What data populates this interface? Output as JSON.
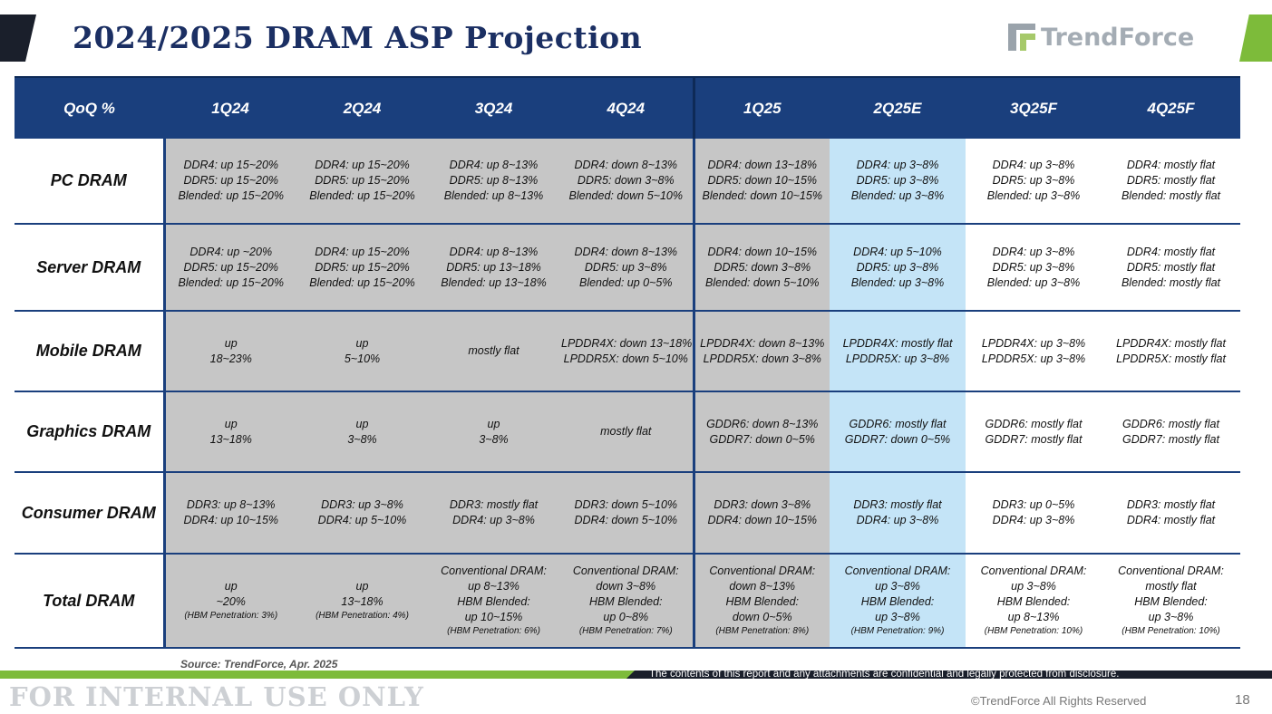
{
  "slide": {
    "title": "2024/2025 DRAM ASP Projection",
    "logo_text": "TrendForce",
    "source": "Source: TrendForce, Apr. 2025",
    "confidential_notice": "The contents of this report and any attachments are confidential and legally protected from disclosure.",
    "internal_label": "FOR INTERNAL USE ONLY",
    "copyright": "©TrendForce All Rights Reserved",
    "page_number": "18"
  },
  "table": {
    "header": [
      "QoQ %",
      "1Q24",
      "2Q24",
      "3Q24",
      "4Q24",
      "1Q25",
      "2Q25E",
      "3Q25F",
      "4Q25F"
    ],
    "rows": [
      {
        "label": "PC DRAM",
        "cells": [
          {
            "lines": [
              "DDR4: up 15~20%",
              "DDR5: up 15~20%",
              "Blended: up 15~20%"
            ]
          },
          {
            "lines": [
              "DDR4: up 15~20%",
              "DDR5: up 15~20%",
              "Blended: up 15~20%"
            ]
          },
          {
            "lines": [
              "DDR4: up 8~13%",
              "DDR5: up 8~13%",
              "Blended: up 8~13%"
            ]
          },
          {
            "lines": [
              "DDR4: down 8~13%",
              "DDR5: down 3~8%",
              "Blended: down 5~10%"
            ]
          },
          {
            "lines": [
              "DDR4: down 13~18%",
              "DDR5: down 10~15%",
              "Blended: down 10~15%"
            ]
          },
          {
            "lines": [
              "DDR4: up 3~8%",
              "DDR5: up 3~8%",
              "Blended: up 3~8%"
            ]
          },
          {
            "lines": [
              "DDR4: up 3~8%",
              "DDR5: up 3~8%",
              "Blended: up 3~8%"
            ]
          },
          {
            "lines": [
              "DDR4: mostly flat",
              "DDR5: mostly flat",
              "Blended: mostly flat"
            ]
          }
        ]
      },
      {
        "label": "Server DRAM",
        "cells": [
          {
            "lines": [
              "DDR4: up ~20%",
              "DDR5: up 15~20%",
              "Blended: up 15~20%"
            ]
          },
          {
            "lines": [
              "DDR4: up 15~20%",
              "DDR5: up 15~20%",
              "Blended: up 15~20%"
            ]
          },
          {
            "lines": [
              "DDR4: up 8~13%",
              "DDR5: up 13~18%",
              "Blended: up 13~18%"
            ]
          },
          {
            "lines": [
              "DDR4: down 8~13%",
              "DDR5: up 3~8%",
              "Blended: up 0~5%"
            ]
          },
          {
            "lines": [
              "DDR4: down 10~15%",
              "DDR5: down 3~8%",
              "Blended: down 5~10%"
            ]
          },
          {
            "lines": [
              "DDR4: up 5~10%",
              "DDR5: up 3~8%",
              "Blended: up 3~8%"
            ]
          },
          {
            "lines": [
              "DDR4: up 3~8%",
              "DDR5: up 3~8%",
              "Blended: up 3~8%"
            ]
          },
          {
            "lines": [
              "DDR4: mostly flat",
              "DDR5: mostly flat",
              "Blended: mostly flat"
            ]
          }
        ]
      },
      {
        "label": "Mobile DRAM",
        "cells": [
          {
            "lines": [
              "up",
              "18~23%"
            ]
          },
          {
            "lines": [
              "up",
              "5~10%"
            ]
          },
          {
            "lines": [
              "mostly flat"
            ]
          },
          {
            "lines": [
              "LPDDR4X: down 13~18%",
              "LPDDR5X: down 5~10%"
            ]
          },
          {
            "lines": [
              "LPDDR4X: down 8~13%",
              "LPDDR5X: down 3~8%"
            ]
          },
          {
            "lines": [
              "LPDDR4X: mostly flat",
              "LPDDR5X: up 3~8%"
            ]
          },
          {
            "lines": [
              "LPDDR4X: up 3~8%",
              "LPDDR5X: up 3~8%"
            ]
          },
          {
            "lines": [
              "LPDDR4X: mostly flat",
              "LPDDR5X: mostly flat"
            ]
          }
        ]
      },
      {
        "label": "Graphics DRAM",
        "cells": [
          {
            "lines": [
              "up",
              "13~18%"
            ]
          },
          {
            "lines": [
              "up",
              "3~8%"
            ]
          },
          {
            "lines": [
              "up",
              "3~8%"
            ]
          },
          {
            "lines": [
              "mostly flat"
            ]
          },
          {
            "lines": [
              "GDDR6: down 8~13%",
              "GDDR7: down 0~5%"
            ]
          },
          {
            "lines": [
              "GDDR6: mostly flat",
              "GDDR7: down 0~5%"
            ]
          },
          {
            "lines": [
              "GDDR6: mostly flat",
              "GDDR7: mostly flat"
            ]
          },
          {
            "lines": [
              "GDDR6: mostly flat",
              "GDDR7: mostly flat"
            ]
          }
        ]
      },
      {
        "label": "Consumer DRAM",
        "cells": [
          {
            "lines": [
              "DDR3: up 8~13%",
              "DDR4: up 10~15%"
            ]
          },
          {
            "lines": [
              "DDR3: up 3~8%",
              "DDR4: up 5~10%"
            ]
          },
          {
            "lines": [
              "DDR3: mostly flat",
              "DDR4: up 3~8%"
            ]
          },
          {
            "lines": [
              "DDR3: down 5~10%",
              "DDR4: down 5~10%"
            ]
          },
          {
            "lines": [
              "DDR3: down 3~8%",
              "DDR4: down 10~15%"
            ]
          },
          {
            "lines": [
              "DDR3: mostly flat",
              "DDR4: up 3~8%"
            ]
          },
          {
            "lines": [
              "DDR3: up 0~5%",
              "DDR4: up 3~8%"
            ]
          },
          {
            "lines": [
              "DDR3: mostly flat",
              "DDR4: mostly flat"
            ]
          }
        ]
      },
      {
        "label": "Total DRAM",
        "cells": [
          {
            "lines": [
              "up",
              "~20%"
            ],
            "note": "(HBM Penetration: 3%)"
          },
          {
            "lines": [
              "up",
              "13~18%"
            ],
            "note": "(HBM Penetration: 4%)"
          },
          {
            "lines": [
              "Conventional DRAM:",
              "up 8~13%",
              "HBM Blended:",
              "up 10~15%"
            ],
            "note": "(HBM Penetration: 6%)"
          },
          {
            "lines": [
              "Conventional DRAM:",
              "down 3~8%",
              "HBM Blended:",
              "up 0~8%"
            ],
            "note": "(HBM Penetration: 7%)"
          },
          {
            "lines": [
              "Conventional DRAM:",
              "down 8~13%",
              "HBM Blended:",
              "down 0~5%"
            ],
            "note": "(HBM Penetration: 8%)"
          },
          {
            "lines": [
              "Conventional DRAM:",
              "up 3~8%",
              "HBM Blended:",
              "up 3~8%"
            ],
            "note": "(HBM Penetration: 9%)"
          },
          {
            "lines": [
              "Conventional DRAM:",
              "up 3~8%",
              "HBM Blended:",
              "up 8~13%"
            ],
            "note": "(HBM Penetration: 10%)"
          },
          {
            "lines": [
              "Conventional DRAM:",
              "mostly flat",
              "HBM Blended:",
              "up 3~8%"
            ],
            "note": "(HBM Penetration: 10%)"
          }
        ]
      }
    ],
    "column_shading": [
      "gray",
      "gray",
      "gray",
      "gray",
      "gray",
      "light-blue",
      "white",
      "white"
    ],
    "colors": {
      "header_bg": "#1a3f7d",
      "title": "#1b2f63",
      "gray_cell": "#c6c6c6",
      "blue_cell": "#c4e4f7",
      "accent_green": "#7dbb3a"
    }
  }
}
